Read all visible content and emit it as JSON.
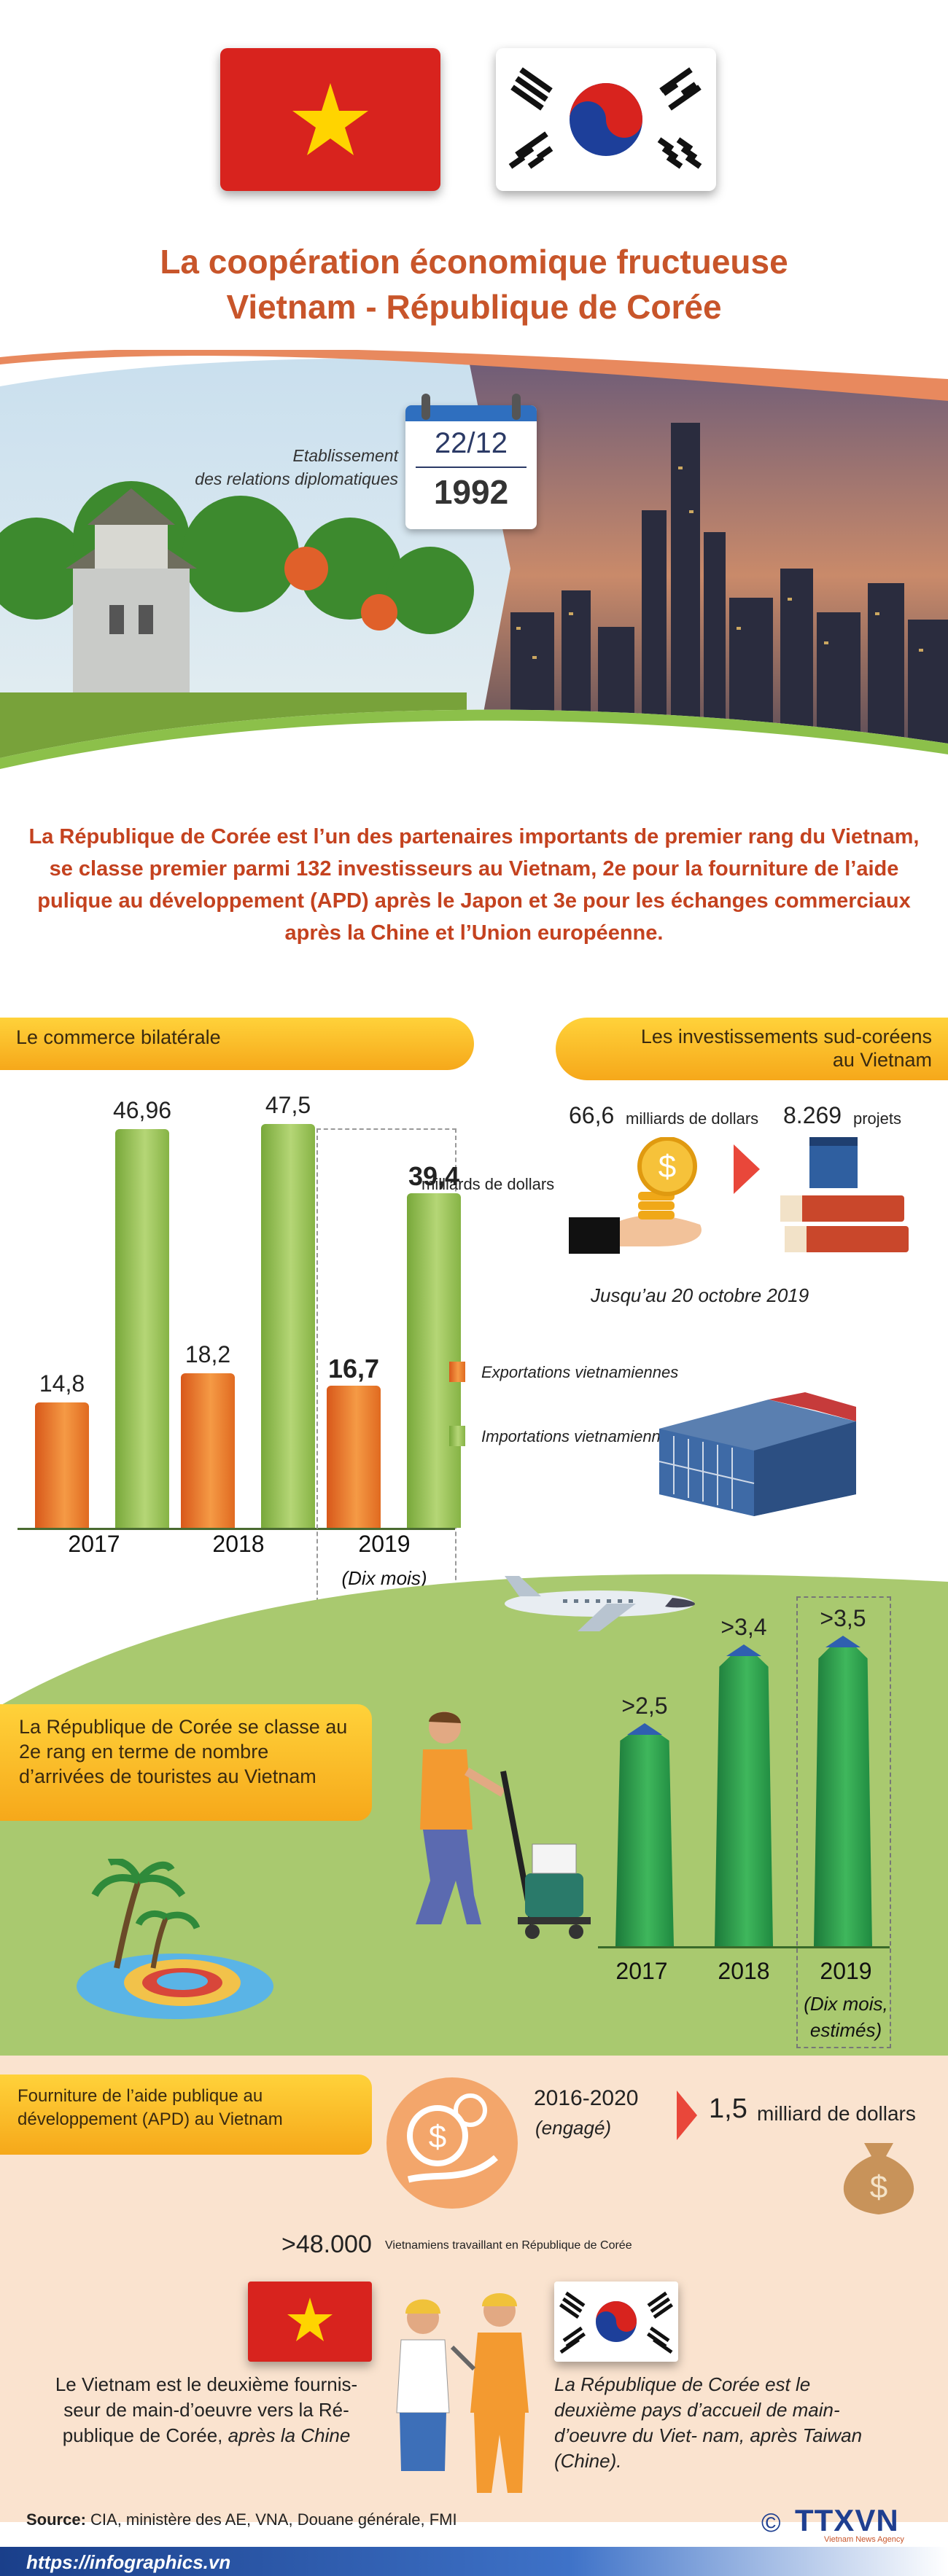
{
  "title": {
    "line1": "La coopération économique fructueuse",
    "line2": "Vietnam - République de Corée"
  },
  "diplomacy": {
    "label_line1": "Etablissement",
    "label_line2": "des relations diplomatiques",
    "date": "22/12",
    "year": "1992"
  },
  "intro": "La République de Corée est l’un des partenaires importants de premier rang du Vietnam, se classe premier parmi 132 investisseurs au Vietnam, 2e pour la fourniture de l’aide pulique au développement (APD) après le Japon et 3e  pour les échanges commerciaux après la Chine et l’Union européenne.",
  "trade": {
    "banner": "Le commerce bilatérale",
    "unit": "milliards de dollars",
    "legend_export": "Exportations vietnamiennes",
    "legend_import": "Importations vietnamiennes",
    "note_2019": "(Dix mois)"
  },
  "investment": {
    "banner_line1": "Les investissements sud-coréens",
    "banner_line2": "au Vietnam",
    "amount": "66,6",
    "amount_unit": "milliards de dollars",
    "projects": "8.269",
    "projects_unit": "projets",
    "date_note": "Jusqu’au 20 octobre 2019"
  },
  "tourism": {
    "text": "La République de Corée se classe au 2e rang en terme de nombre d’arrivées de touristes au Vietnam",
    "note_2019_line1": "(Dix mois,",
    "note_2019_line2": "estimés)"
  },
  "apd": {
    "banner": "Fourniture de l’aide publique au développement (APD) au Vietnam",
    "period": "2016-2020",
    "period_note": "(engagé)",
    "amount": "1,5",
    "amount_unit": "milliard de dollars"
  },
  "labor": {
    "count": ">48.000",
    "count_label": "Vietnamiens travaillant en République de Corée",
    "left_text_plain": "Le Vietnam est le deuxième fournis- seur de main-d’oeuvre vers la Ré- publique de Corée, ",
    "left_text_italic": "après la Chine",
    "right_text": "La République de Corée est le deuxième pays d’accueil de main-d’oeuvre du Viet- nam, après Taiwan (Chine)."
  },
  "footer": {
    "source_label": "Source:",
    "source_text": " CIA, ministère des AE, VNA, Douane générale, FMI",
    "url": "https://infographics.vn",
    "copyright": "©",
    "logo": "TTXVN",
    "logo_sub": "Vietnam News Agency"
  },
  "chart_data": [
    {
      "type": "bar",
      "categories": [
        "2017",
        "2018",
        "2019"
      ],
      "series": [
        {
          "name": "Exportations vietnamiennes",
          "values": [
            14.8,
            18.2,
            16.7
          ],
          "labels": [
            "14,8",
            "18,2",
            "16,7"
          ]
        },
        {
          "name": "Importations vietnamiennes",
          "values": [
            46.96,
            47.5,
            39.4
          ],
          "labels": [
            "46,96",
            "47,5",
            "39,4"
          ]
        }
      ],
      "ylabel": "milliards de dollars"
    },
    {
      "type": "bar",
      "categories": [
        "2017",
        "2018",
        "2019"
      ],
      "values": [
        2.5,
        3.4,
        3.5
      ],
      "labels": [
        ">2,5",
        ">3,4",
        ">3,5"
      ]
    }
  ],
  "colors": {
    "title": "#c8552a",
    "intro": "#c4421f",
    "banner": "#f9b82a",
    "export": "#ef7d2f",
    "import": "#9cc35a",
    "tower": "#2a9a4a",
    "lower_bg": "#fae3cf"
  }
}
